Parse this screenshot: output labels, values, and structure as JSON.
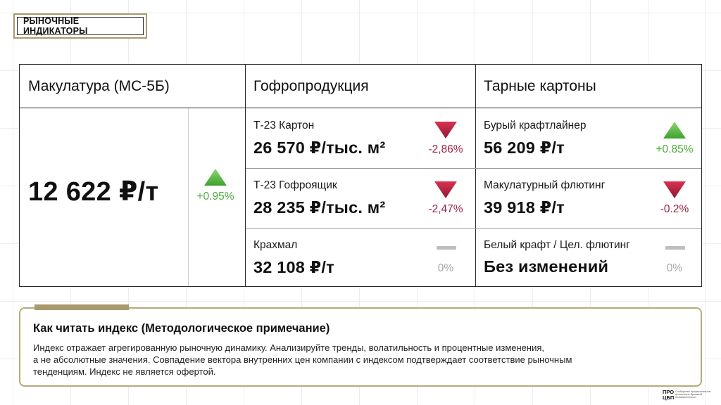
{
  "tag": "РЫНОЧНЫЕ ИНДИКАТОРЫ",
  "columns": {
    "col1": "Макулатура (МС-5Б)",
    "col2": "Гофропродукция",
    "col3": "Тарные картоны"
  },
  "main": {
    "price": "12 622 ₽/т",
    "change": "+0.95%",
    "trend": "up"
  },
  "gofro": [
    {
      "label": "Т-23 Картон",
      "price": "26 570 ₽/тыс. м²",
      "change": "-2,86%",
      "trend": "down"
    },
    {
      "label": "Т-23 Гофроящик",
      "price": "28 235 ₽/тыс. м²",
      "change": "-2,47%",
      "trend": "down"
    },
    {
      "label": "Крахмал",
      "price": "32 108 ₽/т",
      "change": "0%",
      "trend": "flat"
    }
  ],
  "karton": [
    {
      "label": "Бурый крафтлайнер",
      "price": "56 209 ₽/т",
      "change": "+0.85%",
      "trend": "up"
    },
    {
      "label": "Макулатурный флютинг",
      "price": "39 918 ₽/т",
      "change": "-0.2%",
      "trend": "down"
    },
    {
      "label": "Белый крафт / Цел. флютинг",
      "price": "Без изменений",
      "change": "0%",
      "trend": "flat"
    }
  ],
  "note": {
    "title": "Как читать индекс (Методологическое примечание)",
    "line1": "Индекс отражает агрегированную рыночную динамику. Анализируйте тренды, волатильность и процентные изменения,",
    "line2": "а не абсолютные значения. Совпадение вектора внутренних цен компании с индексом подтверждает соответствие рыночным",
    "line3": "тенденциям. Индекс не является офертой."
  },
  "logo": {
    "line1": "ПРО",
    "line2": "ЦБП",
    "subtitle": "Сообщество профессионалов целлюлозно-бумажной промышленности"
  },
  "colors": {
    "up": "#4caf3c",
    "down": "#9b2040",
    "flat": "#bdbdbd",
    "accent": "#a99a6e"
  }
}
